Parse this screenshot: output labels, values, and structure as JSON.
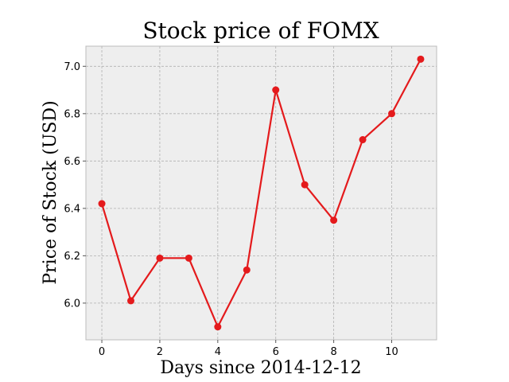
{
  "chart_data": {
    "type": "line",
    "title": "Stock price of FOMX",
    "xlabel": "Days since 2014-12-12",
    "ylabel": "Price of Stock (USD)",
    "x": [
      0,
      1,
      2,
      3,
      4,
      5,
      6,
      7,
      8,
      9,
      10,
      11
    ],
    "series": [
      {
        "values": [
          6.42,
          6.01,
          6.19,
          6.19,
          5.9,
          6.14,
          6.9,
          6.5,
          6.35,
          6.69,
          6.8,
          7.03
        ]
      }
    ],
    "xlim": [
      -0.55,
      11.55
    ],
    "ylim": [
      5.845,
      7.085
    ],
    "xticks": [
      0,
      2,
      4,
      6,
      8,
      10
    ],
    "xtick_labels": [
      "0",
      "2",
      "4",
      "6",
      "8",
      "10"
    ],
    "yticks": [
      6.0,
      6.2,
      6.4,
      6.6,
      6.8,
      7.0
    ],
    "ytick_labels": [
      "6.0",
      "6.2",
      "6.4",
      "6.6",
      "6.8",
      "7.0"
    ],
    "grid": true,
    "line_color": "#e41a1c",
    "marker": "circle",
    "plot_background": "#eeeeee",
    "grid_color": "#b0b0b0",
    "frame_color": "#bcbcbc"
  }
}
